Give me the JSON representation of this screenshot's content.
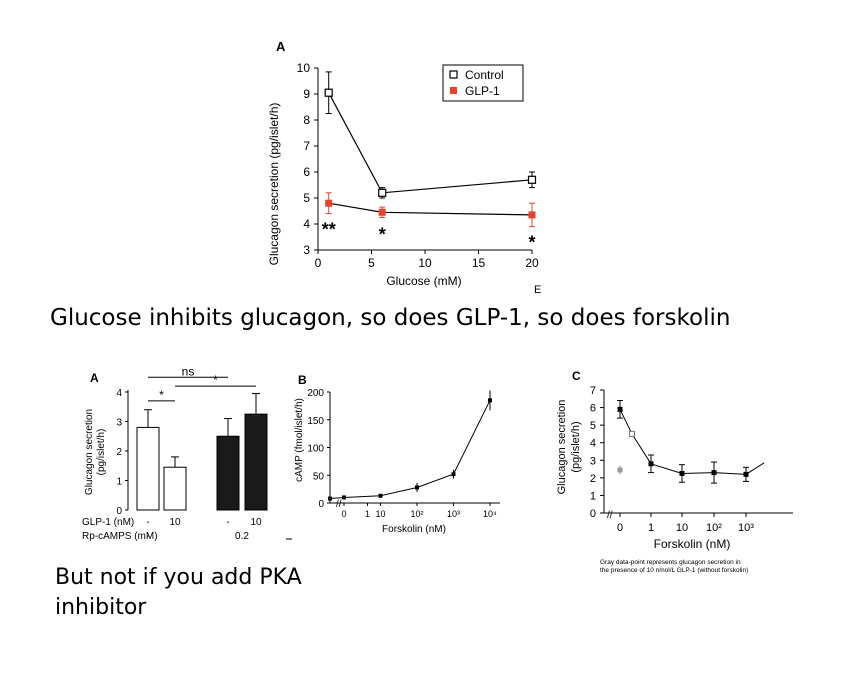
{
  "captions": {
    "main": "Glucose inhibits glucagon, so does GLP-1, so does forskolin",
    "pka": "But not if you add PKA inhibitor"
  },
  "chart_data": [
    {
      "panel": "A",
      "type": "line",
      "ylabel": "Glucagon secretion (pg/islet/h)",
      "xlabel": "Glucose (mM)",
      "xlim": [
        0,
        20
      ],
      "ylim": [
        3,
        10
      ],
      "xticks": [
        0,
        5,
        10,
        15,
        20
      ],
      "yticks": [
        3,
        4,
        5,
        6,
        7,
        8,
        9,
        10
      ],
      "legend_position": "top-right",
      "corner_letter": "E",
      "series": [
        {
          "name": "Control",
          "marker": "open-square",
          "color": "#222222",
          "x": [
            1,
            6,
            20
          ],
          "y": [
            9.05,
            5.2,
            5.7
          ],
          "err": [
            0.8,
            0.2,
            0.3
          ]
        },
        {
          "name": "GLP-1",
          "marker": "filled-square",
          "color": "#e8432e",
          "x": [
            1,
            6,
            20
          ],
          "y": [
            4.8,
            4.45,
            4.35
          ],
          "err": [
            0.4,
            0.2,
            0.45
          ]
        }
      ],
      "annotations": [
        {
          "text": "**",
          "x": 1,
          "y": 3.95
        },
        {
          "text": "*",
          "x": 6,
          "y": 3.75
        },
        {
          "text": "*",
          "x": 20,
          "y": 3.45
        }
      ]
    },
    {
      "panel": "A",
      "type": "bar",
      "ylabel_line1": "Glucagon secretion",
      "ylabel_line2": "(pg/islet/h)",
      "ylim": [
        0,
        4
      ],
      "yticks": [
        0,
        1,
        2,
        3,
        4
      ],
      "row_labels": [
        "GLP-1 (nM)",
        "Rp-cAMPS (mM)"
      ],
      "bars": [
        {
          "glp1": "-",
          "rp": "-",
          "value": 2.8,
          "err": 0.6,
          "fill": "#ffffff"
        },
        {
          "glp1": "10",
          "rp": "",
          "value": 1.45,
          "err": 0.35,
          "fill": "#ffffff"
        },
        {
          "glp1": "-",
          "rp": "0.2",
          "value": 2.5,
          "err": 0.6,
          "fill": "#1a1a1a"
        },
        {
          "glp1": "10",
          "rp": "",
          "value": 3.25,
          "err": 0.7,
          "fill": "#1a1a1a"
        }
      ],
      "significance": [
        {
          "from": 0,
          "to": 1,
          "label": "*",
          "y": 3.7
        },
        {
          "from": 0,
          "to": 2,
          "label": "ns",
          "y": 4.5
        },
        {
          "from": 1,
          "to": 3,
          "label": "*",
          "y": 4.2
        }
      ]
    },
    {
      "panel": "B",
      "type": "line",
      "ylabel": "cAMP (fmol/islet/h)",
      "xlabel": "Forskolin (nM)",
      "ylim": [
        0,
        200
      ],
      "yticks": [
        0,
        50,
        100,
        150,
        200
      ],
      "xtick_labels": [
        "0",
        "1",
        "10",
        "10²",
        "10³",
        "10⁴"
      ],
      "x_log": [
        0,
        0.3,
        1,
        2,
        3,
        4
      ],
      "y": [
        8,
        10,
        13,
        28,
        52,
        185
      ],
      "err": [
        2,
        2,
        3,
        8,
        8,
        18
      ]
    },
    {
      "panel": "C",
      "type": "line",
      "ylabel_line1": "Glucagon secretion",
      "ylabel_line2": "(pg/islet/h)",
      "xlabel": "Forskolin (nM)",
      "ylim": [
        0,
        7
      ],
      "yticks": [
        0,
        1,
        2,
        3,
        4,
        5,
        6,
        7
      ],
      "xtick_labels": [
        "0",
        "1",
        "10",
        "10²",
        "10³"
      ],
      "x_log": [
        0,
        0.4,
        1,
        2,
        3,
        4
      ],
      "y": [
        5.9,
        4.5,
        2.8,
        2.25,
        2.3,
        2.2
      ],
      "err": [
        0.5,
        0,
        0.5,
        0.5,
        0.6,
        0.4
      ],
      "gray_point": {
        "y": 2.45,
        "err": 0.25
      },
      "note_line1": "Gray data-point represents glucagon secretion in",
      "note_line2": "the presence of 10 nmol/L GLP-1 (without forskolin)"
    }
  ]
}
